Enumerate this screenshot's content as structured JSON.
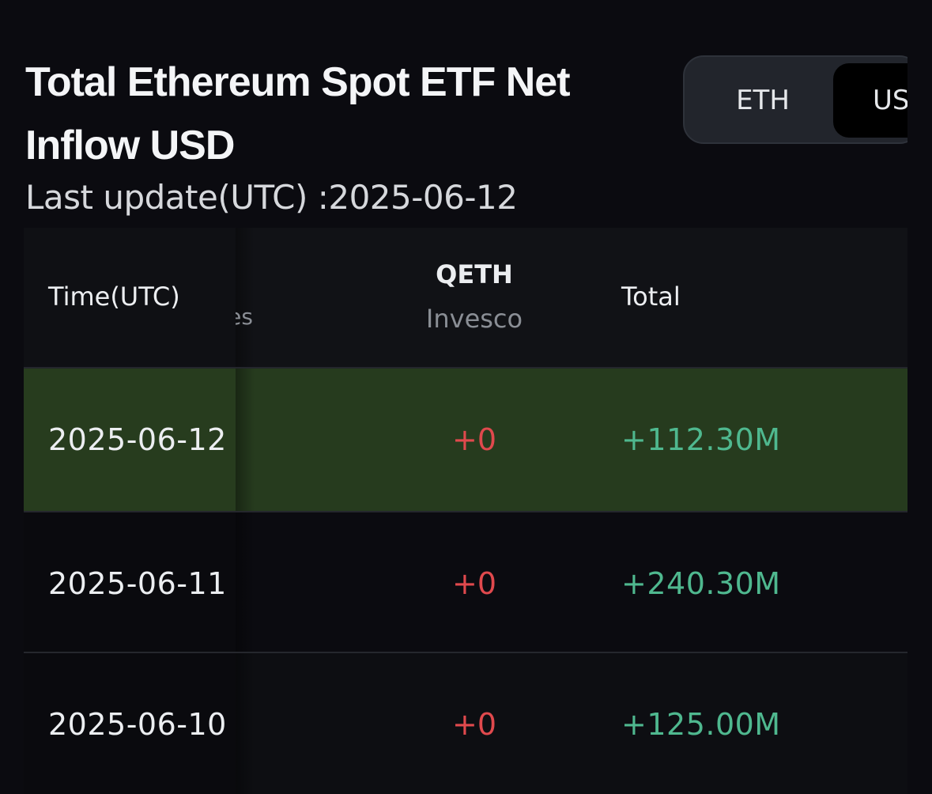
{
  "header": {
    "title": "Total Ethereum Spot ETF Net Inflow USD",
    "last_update": "Last update(UTC) :2025-06-12"
  },
  "unit_toggle": {
    "options": [
      "ETH",
      "USD"
    ],
    "selected": "USD",
    "eth_label": "ETH",
    "usd_label": "US"
  },
  "table": {
    "columns": {
      "time": "Time(UTC)",
      "partial": "es",
      "qeth_ticker": "QETH",
      "qeth_issuer": "Invesco",
      "total": "Total"
    },
    "rows": [
      {
        "date": "2025-06-12",
        "qeth": "+0",
        "total": "+112.30M",
        "highlighted": true
      },
      {
        "date": "2025-06-11",
        "qeth": "+0",
        "total": "+240.30M",
        "highlighted": false
      },
      {
        "date": "2025-06-10",
        "qeth": "+0",
        "total": "+125.00M",
        "highlighted": false
      }
    ]
  },
  "colors": {
    "background": "#0b0b10",
    "positive": "#4fb88f",
    "zero": "#e0494d",
    "highlight_row": "#263b1e"
  }
}
